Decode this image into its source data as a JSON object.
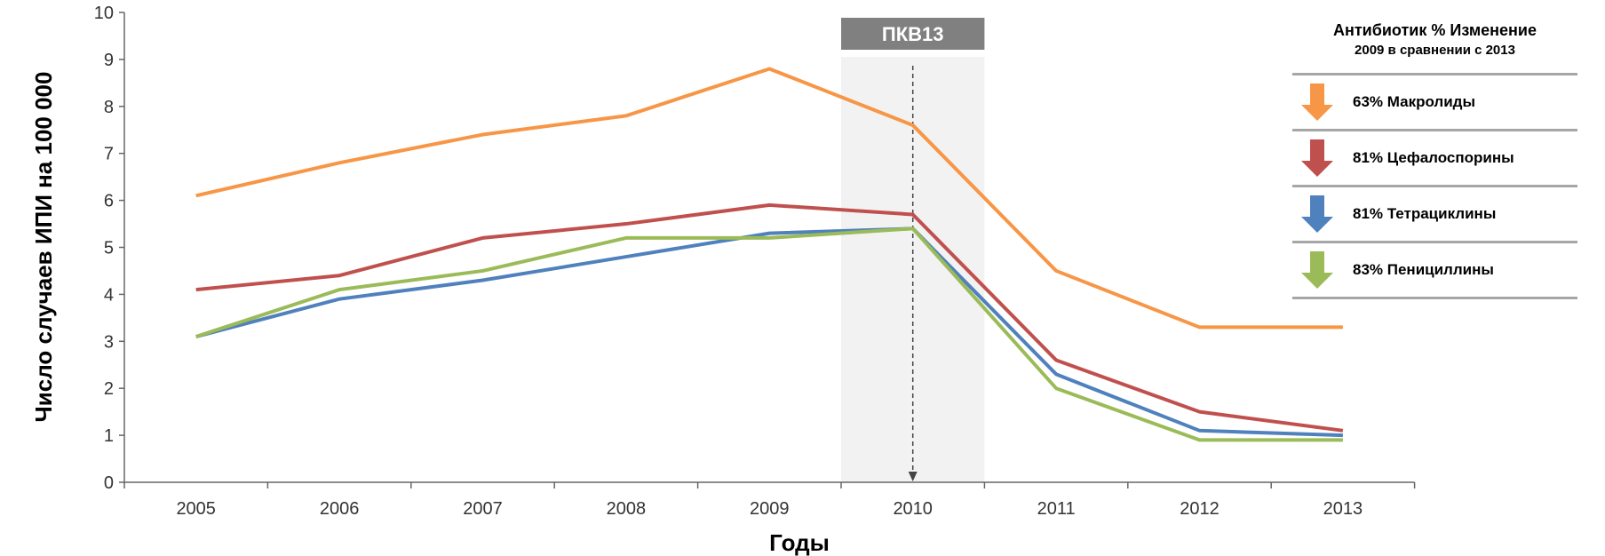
{
  "chart_data": {
    "type": "line",
    "ylabel": "Число случаев ИПИ на 100 000",
    "xlabel": "Годы",
    "categories": [
      "2005",
      "2006",
      "2007",
      "2008",
      "2009",
      "2010",
      "2011",
      "2012",
      "2013"
    ],
    "ylim": [
      0,
      10
    ],
    "yticks": [
      "0",
      "1",
      "2",
      "3",
      "4",
      "5",
      "6",
      "7",
      "8",
      "9",
      "10"
    ],
    "grid": false,
    "series": [
      {
        "name": "Макролиды",
        "color": "#f79646",
        "values": [
          6.1,
          6.8,
          7.4,
          7.8,
          8.8,
          7.6,
          4.5,
          3.3,
          3.3
        ]
      },
      {
        "name": "Цефалоспорины",
        "color": "#c0504d",
        "values": [
          4.1,
          4.4,
          5.2,
          5.5,
          5.9,
          5.7,
          2.6,
          1.5,
          1.1
        ]
      },
      {
        "name": "Тетрациклины",
        "color": "#4f81bd",
        "values": [
          3.1,
          3.9,
          4.3,
          4.8,
          5.3,
          5.4,
          2.3,
          1.1,
          1.0
        ]
      },
      {
        "name": "Пенициллины",
        "color": "#9bbb59",
        "values": [
          3.1,
          4.1,
          4.5,
          5.2,
          5.2,
          5.4,
          2.0,
          0.9,
          0.9
        ]
      }
    ],
    "annotation": {
      "label": "ПКВ13",
      "year": "2010"
    },
    "legend": {
      "placement": "right",
      "title": "Антибиотик % Изменение",
      "subtitle": "2009 в сравнении с 2013",
      "items": [
        {
          "text": "63% Макролиды",
          "color": "#f79646",
          "icon": "arrow-down-icon"
        },
        {
          "text": "81% Цефалоспорины",
          "color": "#c0504d",
          "icon": "arrow-down-icon"
        },
        {
          "text": "81% Тетрациклины",
          "color": "#4f81bd",
          "icon": "arrow-down-icon"
        },
        {
          "text": "83% Пенициллины",
          "color": "#9bbb59",
          "icon": "arrow-down-icon"
        }
      ]
    }
  }
}
